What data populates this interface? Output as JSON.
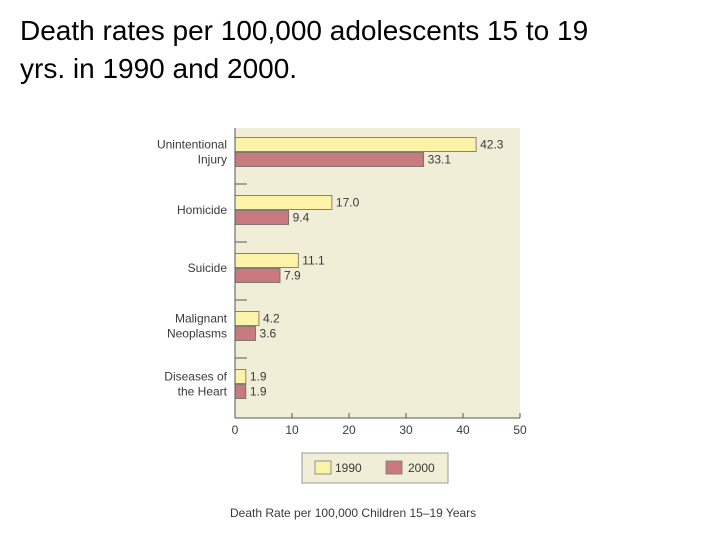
{
  "slide": {
    "title_line1": "Death rates per 100,000 adolescents 15 to 19",
    "title_line2": "yrs.   in 1990 and 2000."
  },
  "chart_data": {
    "type": "bar",
    "orientation": "horizontal",
    "categories": [
      [
        "Unintentional",
        "Injury"
      ],
      [
        "Homicide"
      ],
      [
        "Suicide"
      ],
      [
        "Malignant",
        "Neoplasms"
      ],
      [
        "Diseases of",
        "the Heart"
      ]
    ],
    "series": [
      {
        "name": "1990",
        "color": "#fdf3a8",
        "values": [
          42.3,
          17.0,
          11.1,
          4.2,
          1.9
        ],
        "labels": [
          "42.3",
          "17.0",
          "11.1",
          "4.2",
          "1.9"
        ]
      },
      {
        "name": "2000",
        "color": "#c97a7e",
        "values": [
          33.1,
          9.4,
          7.9,
          3.6,
          1.9
        ],
        "labels": [
          "33.1",
          "9.4",
          "7.9",
          "3.6",
          "1.9"
        ]
      }
    ],
    "xlabel": "Death Rate per 100,000 Children 15–19 Years",
    "xlim": [
      0,
      50
    ],
    "xticks": [
      "0",
      "10",
      "20",
      "30",
      "40",
      "50"
    ],
    "grid": false,
    "legend_position": "bottom",
    "plot_background": "#f1eed8"
  }
}
